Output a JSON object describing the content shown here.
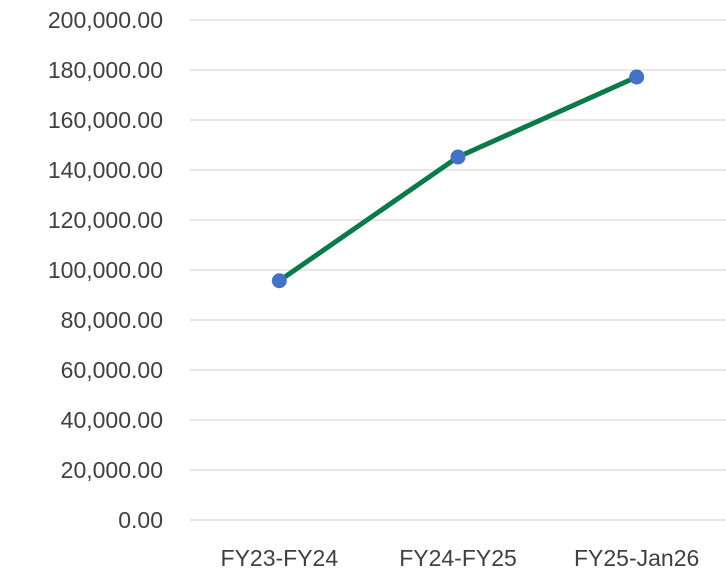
{
  "chart_data": {
    "type": "line",
    "categories": [
      "FY23-FY24",
      "FY24-FY25",
      "FY25-Jan26"
    ],
    "series": [
      {
        "values": [
          95700,
          145200,
          177200
        ],
        "line_color": "#0B7A4B",
        "marker_color": "#4472C4"
      }
    ],
    "y_tick_labels": [
      "0.00",
      "20,000.00",
      "40,000.00",
      "60,000.00",
      "80,000.00",
      "100,000.00",
      "120,000.00",
      "140,000.00",
      "160,000.00",
      "180,000.00",
      "200,000.00"
    ],
    "ylim": [
      0,
      200000
    ],
    "y_tick_step": 20000,
    "grid": true,
    "gridline_color": "#D9D9D9",
    "title": "",
    "xlabel": "",
    "ylabel": ""
  }
}
